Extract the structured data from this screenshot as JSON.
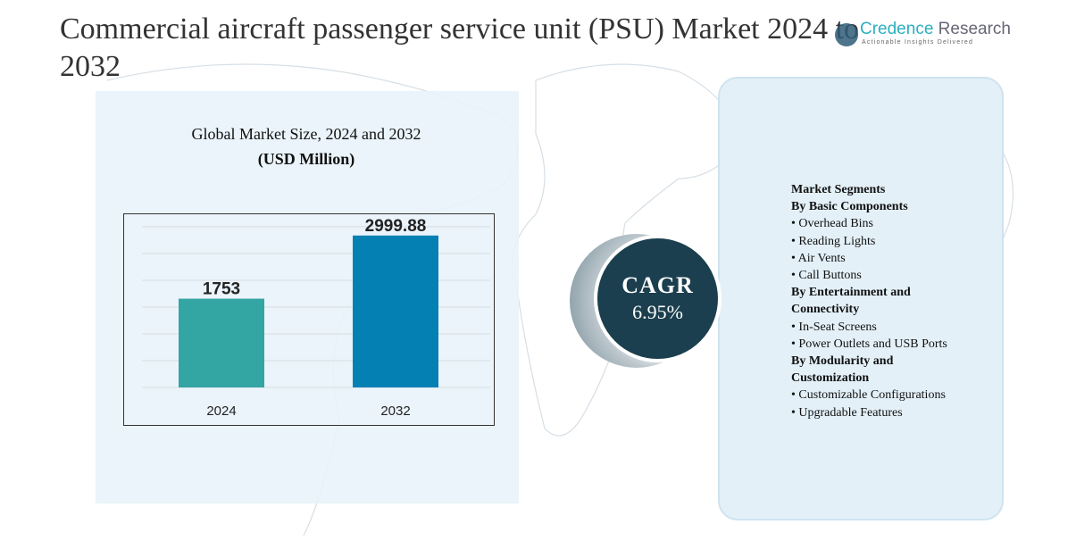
{
  "header": {
    "title": "Commercial aircraft passenger service unit (PSU) Market 2024 to 2032"
  },
  "logo": {
    "name_accent": "Credence",
    "name_rest": " Research",
    "tagline": "Actionable Insights Delivered"
  },
  "chart_data": {
    "type": "bar",
    "title": "Global Market Size, 2024 and 2032",
    "subtitle": "(USD Million)",
    "categories": [
      "2024",
      "2032"
    ],
    "values": [
      1753,
      2999.88
    ],
    "value_labels": [
      "1753",
      "2999.88"
    ],
    "colors": [
      "#33a5a3",
      "#0580b2"
    ],
    "ylim": [
      0,
      3300
    ],
    "grid": true,
    "xlabel": "",
    "ylabel": ""
  },
  "cagr": {
    "label": "CAGR",
    "value": "6.95%"
  },
  "segments": {
    "heading": "Market Segments",
    "groups": [
      {
        "title": "By Basic Components",
        "items": [
          "Overhead Bins",
          "Reading Lights",
          "Air Vents",
          "Call Buttons"
        ]
      },
      {
        "title": "By Entertainment and Connectivity",
        "items": [
          "In-Seat Screens",
          "Power Outlets and USB Ports"
        ]
      },
      {
        "title": "By Modularity and Customization",
        "items": [
          "Customizable Configurations",
          "Upgradable Features"
        ]
      }
    ]
  },
  "colors": {
    "cagr_circle": "#1b3f4e",
    "panel": "#e3f0f8"
  }
}
